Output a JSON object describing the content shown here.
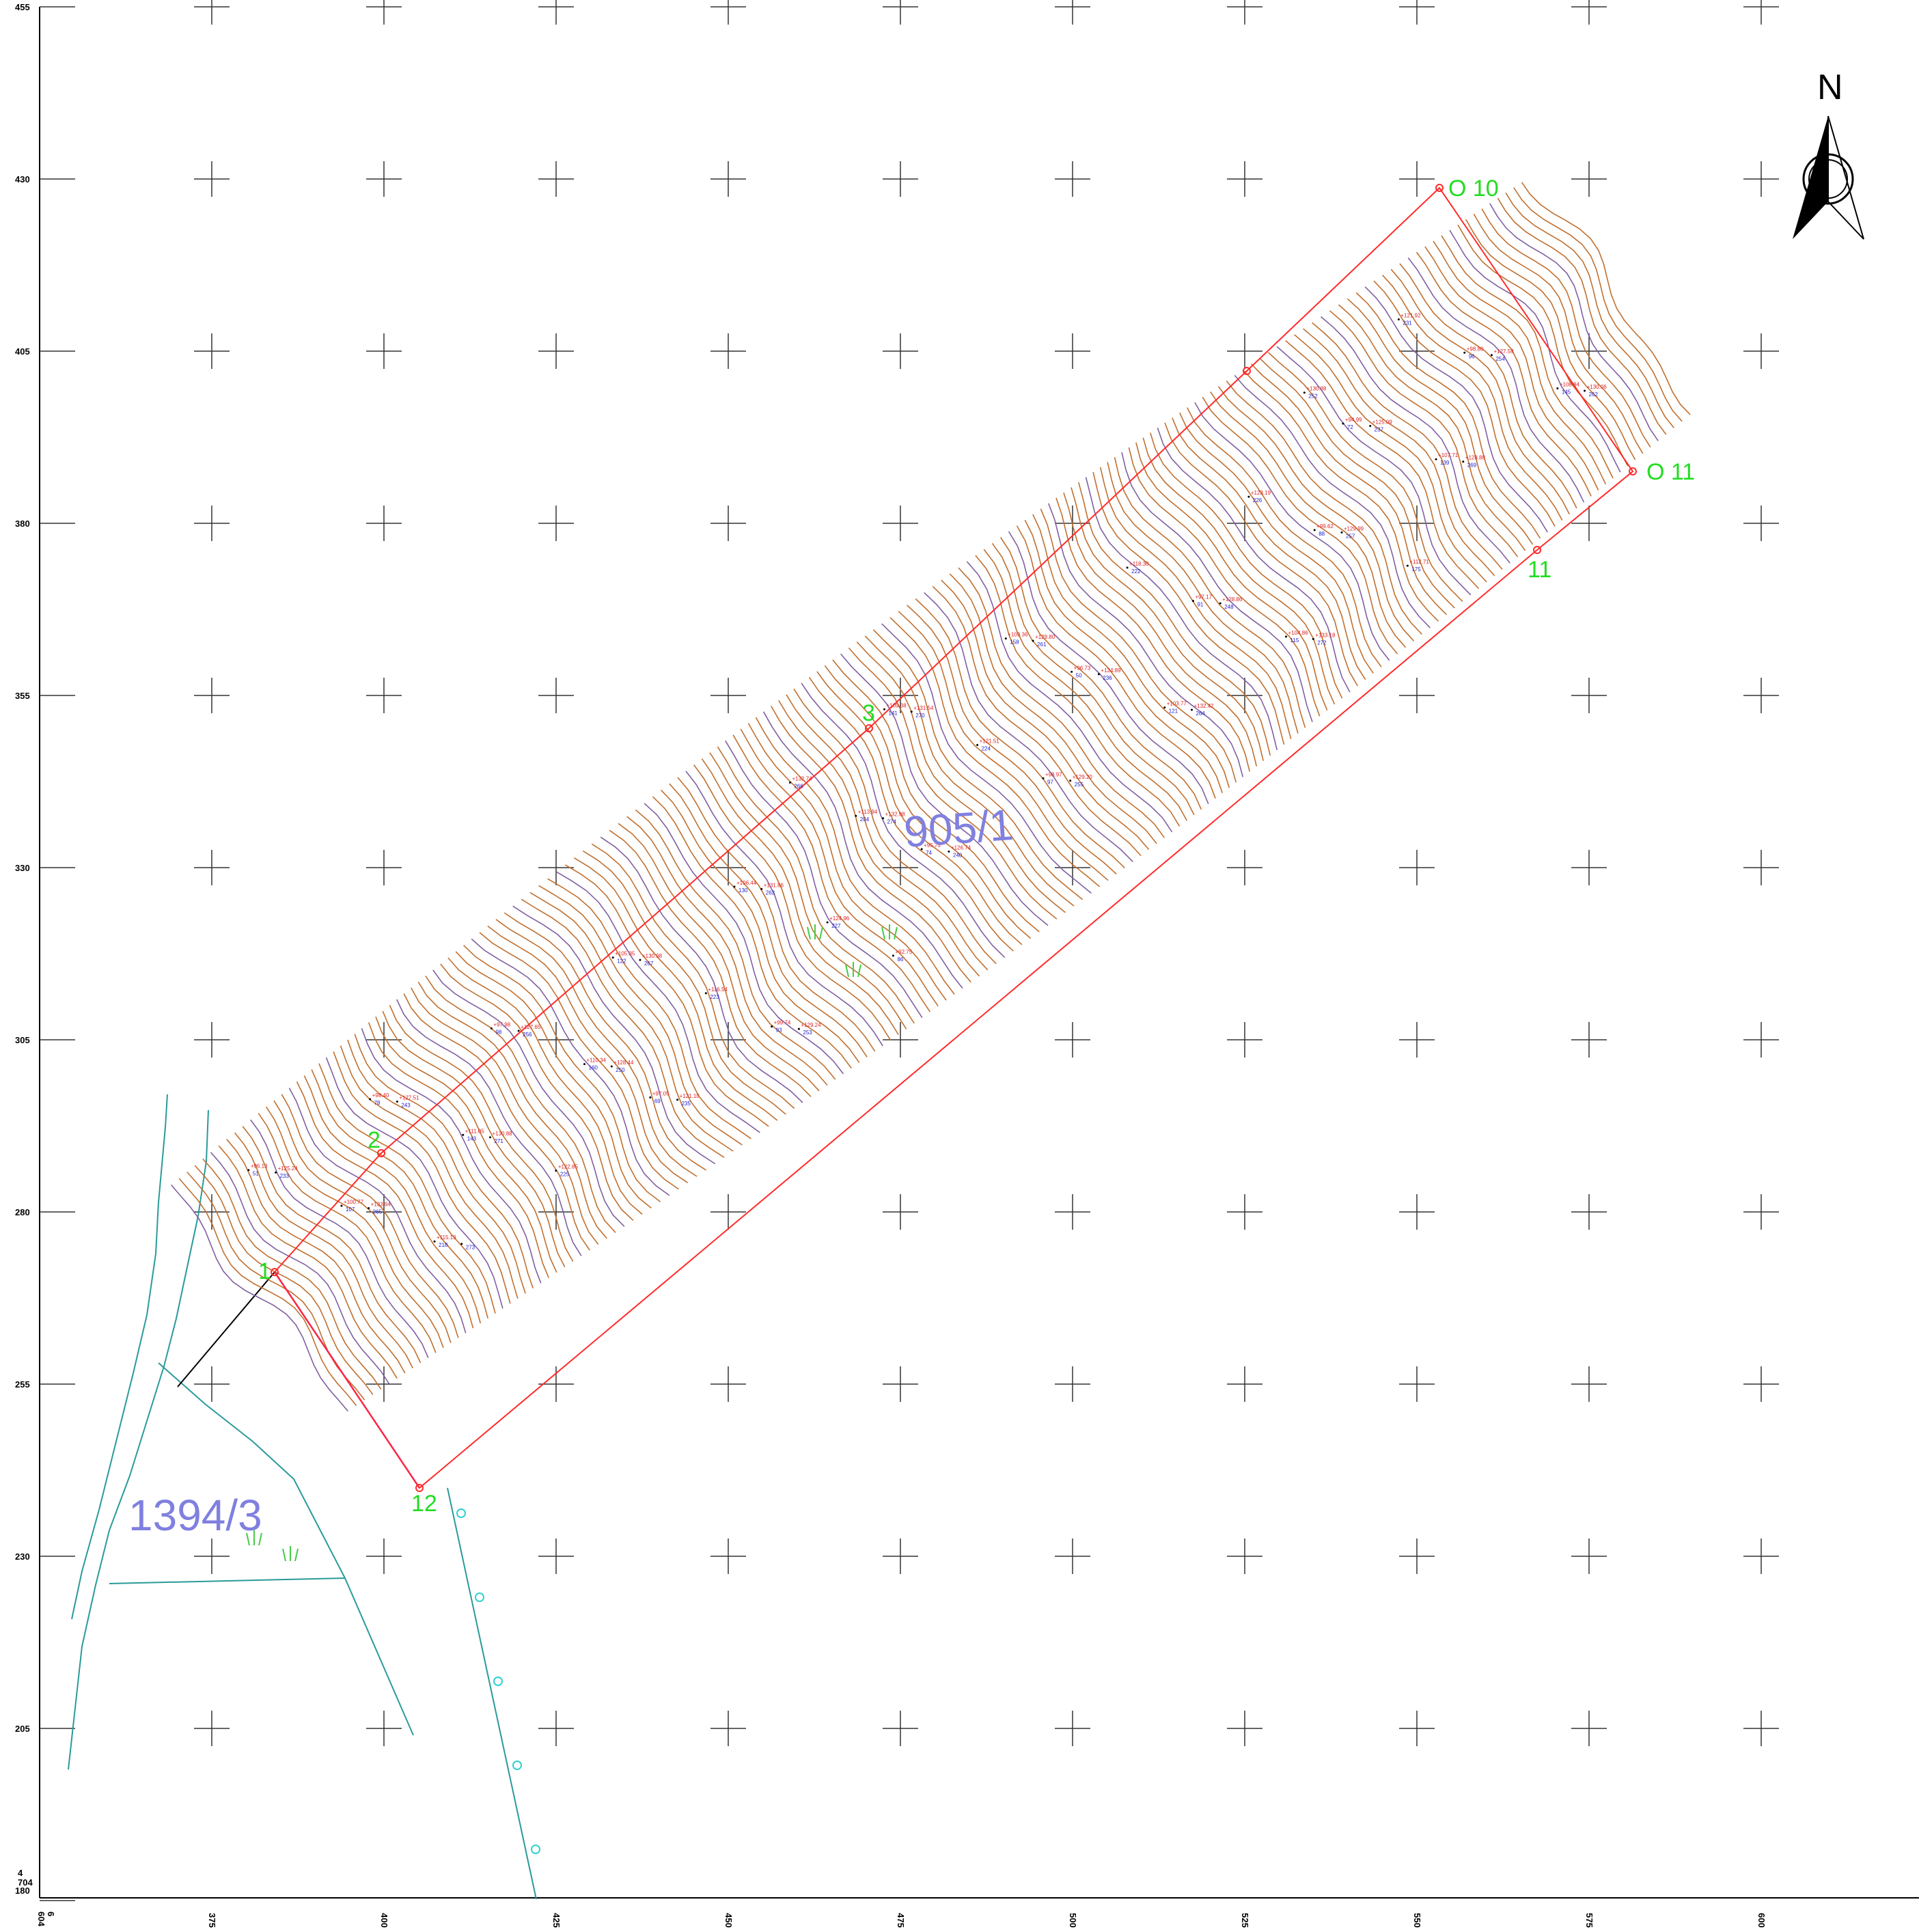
{
  "map": {
    "x_ticks": [
      "350",
      "375",
      "400",
      "425",
      "450",
      "475",
      "500",
      "525",
      "550",
      "575",
      "600"
    ],
    "y_ticks": [
      "455",
      "430",
      "405",
      "380",
      "355",
      "330",
      "305",
      "280",
      "255",
      "230",
      "205",
      "180"
    ],
    "origin_x_prefix": "6\n604",
    "origin_y_prefix": "4\n704",
    "north_label": "N",
    "parcels": [
      {
        "id": "main",
        "label": "905/1"
      },
      {
        "id": "neighbor",
        "label": "1394/3"
      }
    ],
    "vertices": [
      {
        "label": "1"
      },
      {
        "label": "2"
      },
      {
        "label": "3"
      },
      {
        "label": "O 10"
      },
      {
        "label": "O 11"
      },
      {
        "label": "11"
      },
      {
        "label": "12"
      }
    ],
    "survey_points": [
      {
        "elev": "+96.13",
        "id": "51"
      },
      {
        "elev": "+96.73",
        "id": "50"
      },
      {
        "elev": "+97.05",
        "id": "69"
      },
      {
        "elev": "+94.99",
        "id": "72"
      },
      {
        "elev": "+95.75",
        "id": "74"
      },
      {
        "elev": "+98.40",
        "id": "78"
      },
      {
        "elev": "+97.17",
        "id": "91"
      },
      {
        "elev": "+99.74",
        "id": "93"
      },
      {
        "elev": "+98.80",
        "id": "96"
      },
      {
        "elev": "+98.97",
        "id": "97"
      },
      {
        "elev": "+97.98",
        "id": "98"
      },
      {
        "elev": "+99.62",
        "id": "88"
      },
      {
        "elev": "+92.75",
        "id": "86"
      },
      {
        "elev": "+100.77",
        "id": "107"
      },
      {
        "elev": "+103.77",
        "id": "121"
      },
      {
        "elev": "+105.35",
        "id": "122"
      },
      {
        "elev": "+107.71",
        "id": "139"
      },
      {
        "elev": "+109.38",
        "id": "141"
      },
      {
        "elev": "+111.05",
        "id": "143"
      },
      {
        "elev": "+104.86",
        "id": "115"
      },
      {
        "elev": "+106.44",
        "id": "130"
      },
      {
        "elev": "+108.84",
        "id": "145"
      },
      {
        "elev": "+109.36",
        "id": "158"
      },
      {
        "elev": "+110.34",
        "id": "160"
      },
      {
        "elev": "+112.71",
        "id": "175"
      },
      {
        "elev": "+113.94",
        "id": "204"
      },
      {
        "elev": "+115.19",
        "id": "218"
      },
      {
        "elev": "+118.30",
        "id": "222"
      },
      {
        "elev": "+116.54",
        "id": "223"
      },
      {
        "elev": "+121.92",
        "id": "231"
      },
      {
        "elev": "+121.51",
        "id": "224"
      },
      {
        "elev": "+122.85",
        "id": "225"
      },
      {
        "elev": "+123.19",
        "id": "226"
      },
      {
        "elev": "+124.96",
        "id": "227"
      },
      {
        "elev": "+125.24",
        "id": "233"
      },
      {
        "elev": "+124.89",
        "id": "236"
      },
      {
        "elev": "+121.10",
        "id": "235"
      },
      {
        "elev": "+125.09",
        "id": "237"
      },
      {
        "elev": "+126.74",
        "id": "240"
      },
      {
        "elev": "+127.51",
        "id": "243"
      },
      {
        "elev": "+128.86",
        "id": "248"
      },
      {
        "elev": "+129.24",
        "id": "253"
      },
      {
        "elev": "+127.59",
        "id": "254"
      },
      {
        "elev": "+129.20",
        "id": "255"
      },
      {
        "elev": "+127.65",
        "id": "256"
      },
      {
        "elev": "+129.99",
        "id": "257"
      },
      {
        "elev": "+132.74",
        "id": "266"
      },
      {
        "elev": "+133.94",
        "id": "265"
      },
      {
        "elev": "+132.42",
        "id": "264"
      },
      {
        "elev": "+130.98",
        "id": "267"
      },
      {
        "elev": "+128.88",
        "id": "269"
      },
      {
        "elev": "+131.54",
        "id": "270"
      },
      {
        "elev": "+130.88",
        "id": "271"
      },
      {
        "elev": "+133.18",
        "id": "272"
      },
      {
        "elev": "+131.86",
        "id": "263"
      },
      {
        "elev": "+130.06",
        "id": "262"
      },
      {
        "elev": "+129.80",
        "id": "261"
      },
      {
        "elev": "+128.44",
        "id": "250"
      },
      {
        "elev": "+130.88",
        "id": "252"
      },
      {
        "elev": "+132.98",
        "id": "274"
      },
      {
        "elev": "",
        "id": "273"
      }
    ]
  }
}
